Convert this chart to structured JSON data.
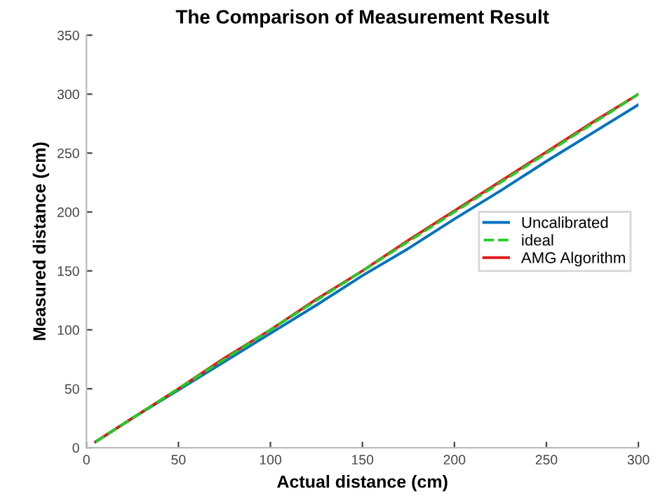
{
  "chart_data": {
    "type": "line",
    "title": "The Comparison of Measurement Result",
    "xlabel": "Actual distance (cm)",
    "ylabel": "Measured distance (cm)",
    "xlim": [
      0,
      300
    ],
    "ylim": [
      0,
      350
    ],
    "xticks": [
      0,
      50,
      100,
      150,
      200,
      250,
      300
    ],
    "yticks": [
      0,
      50,
      100,
      150,
      200,
      250,
      300,
      350
    ],
    "grid": false,
    "legend": "right",
    "marker": "none",
    "series": [
      {
        "name": "Uncalibrated",
        "color": "#0072bd",
        "x": [
          5,
          25,
          50,
          75,
          100,
          125,
          150,
          175,
          200,
          225,
          250,
          275,
          300
        ],
        "values": [
          5,
          25,
          49,
          73,
          97,
          121,
          146,
          169,
          194,
          218,
          243,
          267,
          291
        ]
      },
      {
        "name": "ideal",
        "color": "#22cc22",
        "line_style": "dashed",
        "x": [
          5,
          300
        ],
        "values": [
          5,
          300
        ]
      },
      {
        "name": "AMG Algorithm",
        "color": "#e31a1c",
        "x": [
          5,
          25,
          50,
          75,
          100,
          125,
          150,
          175,
          200,
          225,
          250,
          275,
          300
        ],
        "values": [
          5,
          25,
          50,
          76,
          100,
          126,
          150,
          176,
          201,
          226,
          251,
          276,
          300
        ]
      }
    ]
  }
}
